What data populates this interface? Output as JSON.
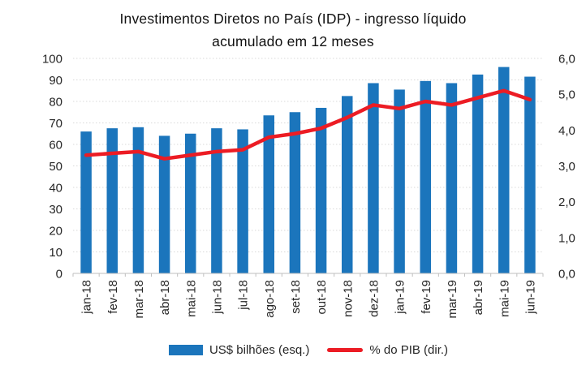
{
  "colors": {
    "bar": "#1B75BC",
    "line": "#EC1C24",
    "gridline": "#D9D9D9",
    "axis_line": "#BFBFBF",
    "tick_text": "#262626",
    "title_text": "#111111",
    "background": "#FFFFFF"
  },
  "chart_data": {
    "type": "bar",
    "subtype": "bar-line-combo",
    "title": "Investimentos Diretos no País (IDP) - ingresso líquido acumulado em 12 meses",
    "title_line1": "Investimentos Diretos no País (IDP) - ingresso líquido",
    "title_line2": "acumulado em 12 meses",
    "categories": [
      "jan-18",
      "fev-18",
      "mar-18",
      "abr-18",
      "mai-18",
      "jun-18",
      "jul-18",
      "ago-18",
      "set-18",
      "out-18",
      "nov-18",
      "dez-18",
      "jan-19",
      "fev-19",
      "mar-19",
      "abr-19",
      "mai-19",
      "jun-19"
    ],
    "series": [
      {
        "name": "US$ bilhões (esq.)",
        "type": "bar",
        "axis": "left",
        "color": "#1B75BC",
        "values": [
          66,
          67.5,
          68,
          64,
          65,
          67.5,
          67,
          73.5,
          75,
          77,
          82.5,
          88.5,
          85.5,
          89.5,
          88.5,
          92.5,
          96,
          91.5
        ]
      },
      {
        "name": "% do PIB (dir.)",
        "type": "line",
        "axis": "right",
        "color": "#EC1C24",
        "values": [
          3.3,
          3.35,
          3.4,
          3.2,
          3.3,
          3.4,
          3.45,
          3.8,
          3.9,
          4.05,
          4.35,
          4.7,
          4.6,
          4.8,
          4.7,
          4.9,
          5.1,
          4.85
        ]
      }
    ],
    "left_axis": {
      "min": 0,
      "max": 100,
      "step": 10,
      "tick_labels": [
        "100",
        "90",
        "80",
        "70",
        "60",
        "50",
        "40",
        "30",
        "20",
        "10",
        "0"
      ]
    },
    "right_axis": {
      "min": 0,
      "max": 6,
      "step": 1,
      "tick_labels": [
        "6,0",
        "5,0",
        "4,0",
        "3,0",
        "2,0",
        "1,0",
        "0,0"
      ]
    },
    "grid": "horizontal-dotted",
    "legend_position": "bottom"
  }
}
